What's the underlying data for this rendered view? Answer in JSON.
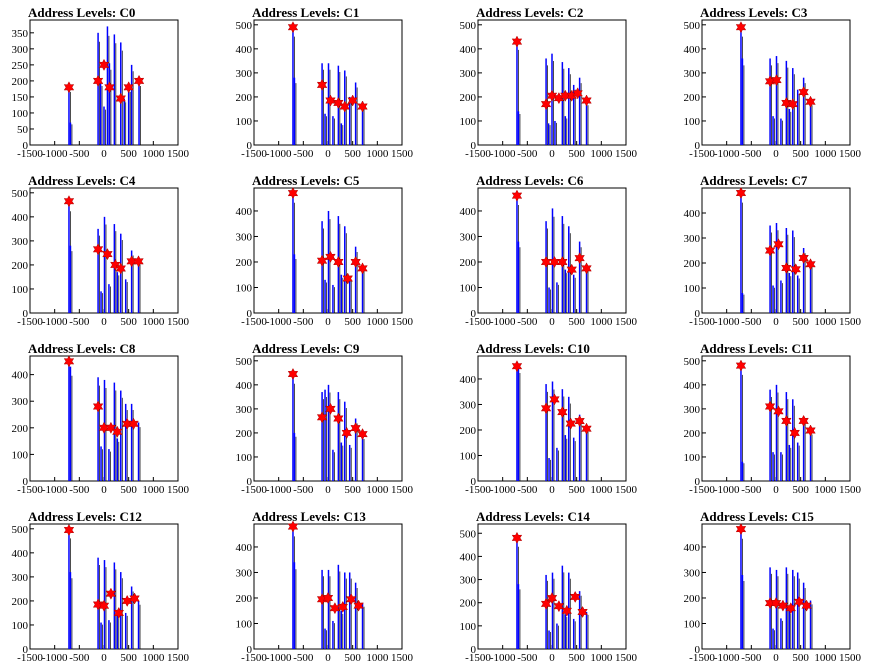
{
  "figure": {
    "title_prefix": "Address Levels: "
  },
  "colors": {
    "histogram": "#0000ff",
    "histogram_dark": "#000000",
    "marker": "#ff0000",
    "axis": "#000000"
  },
  "x_ticks": [
    -1500,
    -1000,
    -500,
    0,
    500,
    1000,
    1500
  ],
  "x_tick_labels": [
    "-1500",
    "-1000",
    "-500",
    "0",
    "500",
    "1000",
    "1500"
  ],
  "chart_data": [
    {
      "type": "bar",
      "title": "Address Levels: C0",
      "xlim": [
        -1500,
        1500
      ],
      "ylim": [
        0,
        390
      ],
      "yticks": [
        0,
        50,
        100,
        150,
        200,
        250,
        300,
        350
      ],
      "x": [
        -710,
        -680,
        -120,
        -70,
        0,
        70,
        110,
        210,
        340,
        410,
        500,
        560,
        710
      ],
      "values": [
        180,
        70,
        350,
        200,
        120,
        370,
        255,
        345,
        320,
        145,
        180,
        250,
        200
      ],
      "markers": [
        {
          "x": -710,
          "y": 180
        },
        {
          "x": -120,
          "y": 200
        },
        {
          "x": 0,
          "y": 250
        },
        {
          "x": 110,
          "y": 180
        },
        {
          "x": 340,
          "y": 145
        },
        {
          "x": 500,
          "y": 180
        },
        {
          "x": 710,
          "y": 200
        }
      ]
    },
    {
      "type": "bar",
      "title": "Address Levels: C1",
      "xlim": [
        -1500,
        1500
      ],
      "ylim": [
        0,
        520
      ],
      "yticks": [
        0,
        100,
        200,
        300,
        400,
        500
      ],
      "x": [
        -710,
        -680,
        -120,
        -60,
        10,
        100,
        210,
        270,
        340,
        440,
        560,
        700
      ],
      "values": [
        490,
        280,
        340,
        130,
        340,
        120,
        330,
        90,
        310,
        200,
        260,
        180
      ],
      "markers": [
        {
          "x": -710,
          "y": 490
        },
        {
          "x": -120,
          "y": 250
        },
        {
          "x": 50,
          "y": 185
        },
        {
          "x": 210,
          "y": 175
        },
        {
          "x": 340,
          "y": 160
        },
        {
          "x": 500,
          "y": 185
        },
        {
          "x": 700,
          "y": 160
        }
      ]
    },
    {
      "type": "bar",
      "title": "Address Levels: C2",
      "xlim": [
        -1500,
        1500
      ],
      "ylim": [
        0,
        520
      ],
      "yticks": [
        0,
        100,
        200,
        300,
        400,
        500
      ],
      "x": [
        -710,
        -680,
        -120,
        -70,
        0,
        60,
        210,
        270,
        340,
        440,
        560,
        700
      ],
      "values": [
        430,
        140,
        360,
        90,
        380,
        100,
        345,
        120,
        320,
        250,
        280,
        180
      ],
      "markers": [
        {
          "x": -710,
          "y": 430
        },
        {
          "x": -120,
          "y": 170
        },
        {
          "x": 0,
          "y": 205
        },
        {
          "x": 140,
          "y": 195
        },
        {
          "x": 270,
          "y": 205
        },
        {
          "x": 400,
          "y": 205
        },
        {
          "x": 520,
          "y": 215
        },
        {
          "x": 700,
          "y": 185
        }
      ]
    },
    {
      "type": "bar",
      "title": "Address Levels: C3",
      "xlim": [
        -1500,
        1500
      ],
      "ylim": [
        0,
        520
      ],
      "yticks": [
        0,
        100,
        200,
        300,
        400,
        500
      ],
      "x": [
        -710,
        -680,
        -120,
        -60,
        10,
        100,
        210,
        270,
        340,
        440,
        560,
        700
      ],
      "values": [
        490,
        360,
        360,
        120,
        370,
        110,
        350,
        150,
        320,
        230,
        280,
        180
      ],
      "markers": [
        {
          "x": -710,
          "y": 490
        },
        {
          "x": -120,
          "y": 265
        },
        {
          "x": 10,
          "y": 270
        },
        {
          "x": 210,
          "y": 175
        },
        {
          "x": 340,
          "y": 170
        },
        {
          "x": 560,
          "y": 220
        },
        {
          "x": 700,
          "y": 180
        }
      ]
    },
    {
      "type": "bar",
      "title": "Address Levels: C4",
      "xlim": [
        -1500,
        1500
      ],
      "ylim": [
        0,
        520
      ],
      "yticks": [
        0,
        100,
        200,
        300,
        400,
        500
      ],
      "x": [
        -710,
        -680,
        -120,
        -60,
        10,
        100,
        210,
        270,
        340,
        440,
        560,
        700
      ],
      "values": [
        460,
        280,
        350,
        90,
        400,
        120,
        370,
        170,
        330,
        140,
        260,
        220
      ],
      "markers": [
        {
          "x": -710,
          "y": 465
        },
        {
          "x": -120,
          "y": 265
        },
        {
          "x": 70,
          "y": 245
        },
        {
          "x": 230,
          "y": 200
        },
        {
          "x": 340,
          "y": 185
        },
        {
          "x": 560,
          "y": 215
        },
        {
          "x": 700,
          "y": 215
        }
      ]
    },
    {
      "type": "bar",
      "title": "Address Levels: C5",
      "xlim": [
        -1500,
        1500
      ],
      "ylim": [
        0,
        490
      ],
      "yticks": [
        0,
        100,
        200,
        300,
        400
      ],
      "x": [
        -710,
        -680,
        -120,
        -60,
        10,
        100,
        210,
        270,
        340,
        440,
        560,
        700
      ],
      "values": [
        470,
        230,
        360,
        130,
        400,
        110,
        380,
        150,
        340,
        140,
        260,
        180
      ],
      "markers": [
        {
          "x": -710,
          "y": 470
        },
        {
          "x": -120,
          "y": 205
        },
        {
          "x": 50,
          "y": 220
        },
        {
          "x": 210,
          "y": 200
        },
        {
          "x": 400,
          "y": 135
        },
        {
          "x": 560,
          "y": 200
        },
        {
          "x": 700,
          "y": 175
        }
      ]
    },
    {
      "type": "bar",
      "title": "Address Levels: C6",
      "xlim": [
        -1500,
        1500
      ],
      "ylim": [
        0,
        490
      ],
      "yticks": [
        0,
        100,
        200,
        300,
        400
      ],
      "x": [
        -710,
        -680,
        -120,
        -60,
        10,
        100,
        210,
        270,
        340,
        440,
        560,
        700
      ],
      "values": [
        460,
        280,
        360,
        100,
        410,
        120,
        380,
        170,
        340,
        150,
        280,
        180
      ],
      "markers": [
        {
          "x": -710,
          "y": 460
        },
        {
          "x": -120,
          "y": 200
        },
        {
          "x": 50,
          "y": 200
        },
        {
          "x": 210,
          "y": 200
        },
        {
          "x": 400,
          "y": 170
        },
        {
          "x": 560,
          "y": 215
        },
        {
          "x": 700,
          "y": 175
        }
      ]
    },
    {
      "type": "bar",
      "title": "Address Levels: C7",
      "xlim": [
        -1500,
        1500
      ],
      "ylim": [
        0,
        500
      ],
      "yticks": [
        0,
        100,
        200,
        300,
        400
      ],
      "x": [
        -710,
        -680,
        -120,
        -60,
        10,
        100,
        210,
        270,
        340,
        440,
        560,
        700
      ],
      "values": [
        480,
        80,
        350,
        110,
        360,
        130,
        340,
        160,
        330,
        150,
        260,
        200
      ],
      "markers": [
        {
          "x": -710,
          "y": 480
        },
        {
          "x": -120,
          "y": 250
        },
        {
          "x": 50,
          "y": 275
        },
        {
          "x": 210,
          "y": 180
        },
        {
          "x": 400,
          "y": 175
        },
        {
          "x": 560,
          "y": 220
        },
        {
          "x": 700,
          "y": 195
        }
      ]
    },
    {
      "type": "bar",
      "title": "Address Levels: C8",
      "xlim": [
        -1500,
        1500
      ],
      "ylim": [
        0,
        470
      ],
      "yticks": [
        0,
        100,
        200,
        300,
        400
      ],
      "x": [
        -710,
        -680,
        -120,
        -60,
        10,
        100,
        210,
        270,
        340,
        440,
        560,
        700
      ],
      "values": [
        450,
        430,
        390,
        130,
        380,
        120,
        370,
        160,
        340,
        290,
        290,
        220
      ],
      "markers": [
        {
          "x": -710,
          "y": 450
        },
        {
          "x": -120,
          "y": 280
        },
        {
          "x": 0,
          "y": 200
        },
        {
          "x": 140,
          "y": 200
        },
        {
          "x": 270,
          "y": 185
        },
        {
          "x": 470,
          "y": 215
        },
        {
          "x": 600,
          "y": 215
        }
      ]
    },
    {
      "type": "bar",
      "title": "Address Levels: C9",
      "xlim": [
        -1500,
        1500
      ],
      "ylim": [
        0,
        520
      ],
      "yticks": [
        0,
        100,
        200,
        300,
        400,
        500
      ],
      "x": [
        -710,
        -680,
        -120,
        -60,
        10,
        100,
        210,
        270,
        340,
        440,
        560,
        700
      ],
      "values": [
        440,
        200,
        370,
        380,
        400,
        130,
        370,
        160,
        330,
        150,
        260,
        190
      ],
      "markers": [
        {
          "x": -710,
          "y": 445
        },
        {
          "x": -120,
          "y": 265
        },
        {
          "x": 50,
          "y": 300
        },
        {
          "x": 210,
          "y": 260
        },
        {
          "x": 380,
          "y": 200
        },
        {
          "x": 560,
          "y": 220
        },
        {
          "x": 700,
          "y": 195
        }
      ]
    },
    {
      "type": "bar",
      "title": "Address Levels: C10",
      "xlim": [
        -1500,
        1500
      ],
      "ylim": [
        0,
        490
      ],
      "yticks": [
        0,
        100,
        200,
        300,
        400
      ],
      "x": [
        -710,
        -680,
        -120,
        -60,
        10,
        100,
        210,
        270,
        340,
        440,
        560,
        700
      ],
      "values": [
        450,
        460,
        380,
        90,
        390,
        130,
        360,
        180,
        330,
        170,
        260,
        210
      ],
      "markers": [
        {
          "x": -710,
          "y": 450
        },
        {
          "x": -120,
          "y": 285
        },
        {
          "x": 50,
          "y": 320
        },
        {
          "x": 210,
          "y": 270
        },
        {
          "x": 380,
          "y": 225
        },
        {
          "x": 560,
          "y": 235
        },
        {
          "x": 700,
          "y": 205
        }
      ]
    },
    {
      "type": "bar",
      "title": "Address Levels: C11",
      "xlim": [
        -1500,
        1500
      ],
      "ylim": [
        0,
        520
      ],
      "yticks": [
        0,
        100,
        200,
        300,
        400,
        500
      ],
      "x": [
        -710,
        -680,
        -120,
        -60,
        10,
        100,
        210,
        270,
        340,
        440,
        560,
        700
      ],
      "values": [
        480,
        80,
        380,
        120,
        400,
        120,
        370,
        150,
        340,
        160,
        260,
        210
      ],
      "markers": [
        {
          "x": -710,
          "y": 480
        },
        {
          "x": -120,
          "y": 310
        },
        {
          "x": 50,
          "y": 290
        },
        {
          "x": 210,
          "y": 250
        },
        {
          "x": 380,
          "y": 200
        },
        {
          "x": 560,
          "y": 250
        },
        {
          "x": 700,
          "y": 210
        }
      ]
    },
    {
      "type": "bar",
      "title": "Address Levels: C12",
      "xlim": [
        -1500,
        1500
      ],
      "ylim": [
        0,
        520
      ],
      "yticks": [
        0,
        100,
        200,
        300,
        400,
        500
      ],
      "x": [
        -710,
        -680,
        -120,
        -60,
        10,
        100,
        210,
        270,
        340,
        440,
        560,
        700
      ],
      "values": [
        500,
        320,
        380,
        110,
        370,
        120,
        360,
        150,
        320,
        150,
        260,
        200
      ],
      "markers": [
        {
          "x": -710,
          "y": 495
        },
        {
          "x": -120,
          "y": 185
        },
        {
          "x": 0,
          "y": 180
        },
        {
          "x": 140,
          "y": 230
        },
        {
          "x": 300,
          "y": 150
        },
        {
          "x": 470,
          "y": 200
        },
        {
          "x": 620,
          "y": 210
        }
      ]
    },
    {
      "type": "bar",
      "title": "Address Levels: C13",
      "xlim": [
        -1500,
        1500
      ],
      "ylim": [
        0,
        490
      ],
      "yticks": [
        0,
        100,
        200,
        300,
        400
      ],
      "x": [
        -710,
        -680,
        -120,
        -60,
        10,
        100,
        210,
        270,
        340,
        440,
        560,
        700
      ],
      "values": [
        480,
        340,
        310,
        80,
        310,
        110,
        330,
        150,
        300,
        300,
        260,
        180
      ],
      "markers": [
        {
          "x": -710,
          "y": 480
        },
        {
          "x": -120,
          "y": 195
        },
        {
          "x": 0,
          "y": 200
        },
        {
          "x": 140,
          "y": 160
        },
        {
          "x": 300,
          "y": 165
        },
        {
          "x": 470,
          "y": 195
        },
        {
          "x": 620,
          "y": 170
        }
      ]
    },
    {
      "type": "bar",
      "title": "Address Levels: C14",
      "xlim": [
        -1500,
        1500
      ],
      "ylim": [
        0,
        540
      ],
      "yticks": [
        0,
        100,
        200,
        300,
        400,
        500
      ],
      "x": [
        -710,
        -680,
        -120,
        -60,
        10,
        100,
        210,
        270,
        340,
        440,
        560,
        700
      ],
      "values": [
        480,
        280,
        320,
        80,
        330,
        110,
        360,
        150,
        330,
        130,
        250,
        160
      ],
      "markers": [
        {
          "x": -710,
          "y": 480
        },
        {
          "x": -120,
          "y": 195
        },
        {
          "x": 0,
          "y": 220
        },
        {
          "x": 140,
          "y": 185
        },
        {
          "x": 300,
          "y": 165
        },
        {
          "x": 470,
          "y": 225
        },
        {
          "x": 620,
          "y": 160
        }
      ]
    },
    {
      "type": "bar",
      "title": "Address Levels: C15",
      "xlim": [
        -1500,
        1500
      ],
      "ylim": [
        0,
        490
      ],
      "yticks": [
        0,
        100,
        200,
        300,
        400
      ],
      "x": [
        -710,
        -680,
        -120,
        -60,
        10,
        100,
        210,
        270,
        340,
        440,
        560,
        700
      ],
      "values": [
        470,
        290,
        320,
        80,
        310,
        120,
        320,
        150,
        310,
        300,
        260,
        190
      ],
      "markers": [
        {
          "x": -710,
          "y": 470
        },
        {
          "x": -120,
          "y": 180
        },
        {
          "x": 0,
          "y": 180
        },
        {
          "x": 140,
          "y": 170
        },
        {
          "x": 300,
          "y": 160
        },
        {
          "x": 470,
          "y": 185
        },
        {
          "x": 620,
          "y": 170
        }
      ]
    }
  ]
}
